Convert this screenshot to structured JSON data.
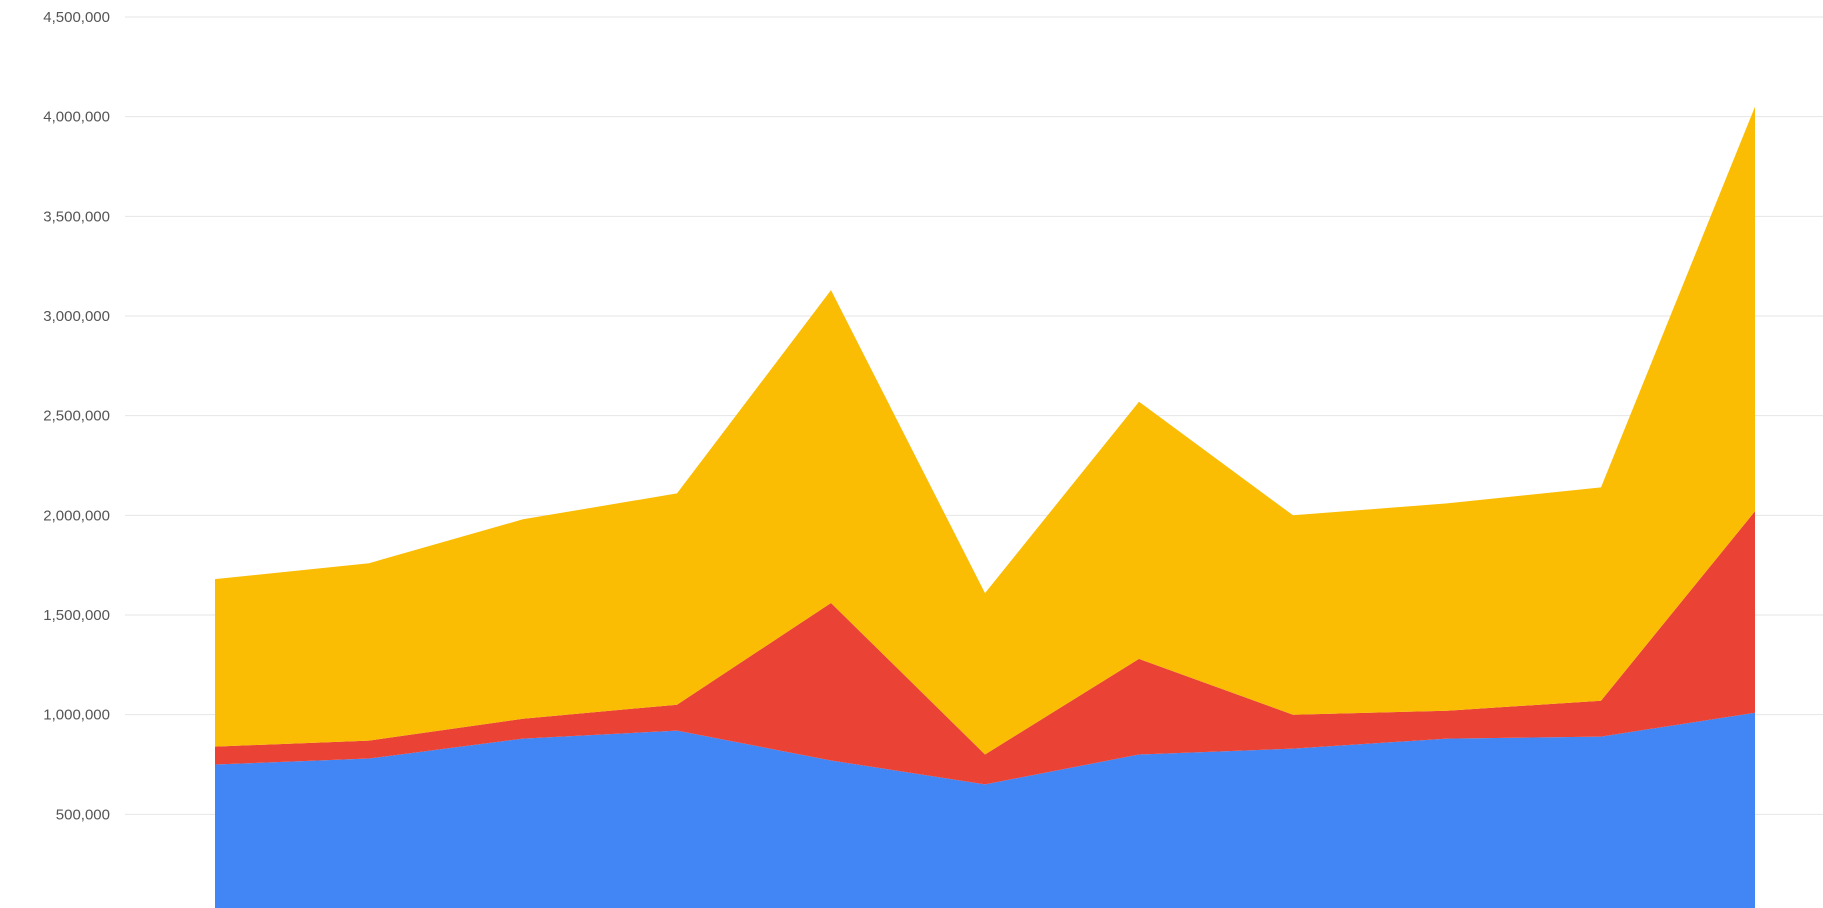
{
  "chart_data": {
    "type": "area",
    "stacked": true,
    "title": "",
    "xlabel": "",
    "ylabel": "",
    "ylim": [
      0,
      4500000
    ],
    "yticks": [
      500000,
      1000000,
      1500000,
      2000000,
      2500000,
      3000000,
      3500000,
      4000000,
      4500000
    ],
    "ytick_labels": [
      "500,000",
      "1,000,000",
      "1,500,000",
      "2,000,000",
      "2,500,000",
      "3,000,000",
      "3,500,000",
      "4,000,000",
      "4,500,000"
    ],
    "grid": true,
    "legend": "none",
    "x": [
      1,
      2,
      3,
      4,
      5,
      6,
      7,
      8,
      9,
      10,
      11
    ],
    "series": [
      {
        "color": "#4285F4",
        "values": [
          750000,
          780000,
          880000,
          920000,
          770000,
          650000,
          800000,
          830000,
          880000,
          890000,
          1010000
        ]
      },
      {
        "color": "#EA4335",
        "values": [
          90000,
          90000,
          100000,
          130000,
          790000,
          150000,
          480000,
          170000,
          140000,
          180000,
          1010000
        ]
      },
      {
        "color": "#FBBC04",
        "values": [
          840000,
          890000,
          1000000,
          1060000,
          1570000,
          810000,
          1290000,
          1000000,
          1040000,
          1070000,
          2030000
        ]
      }
    ]
  }
}
